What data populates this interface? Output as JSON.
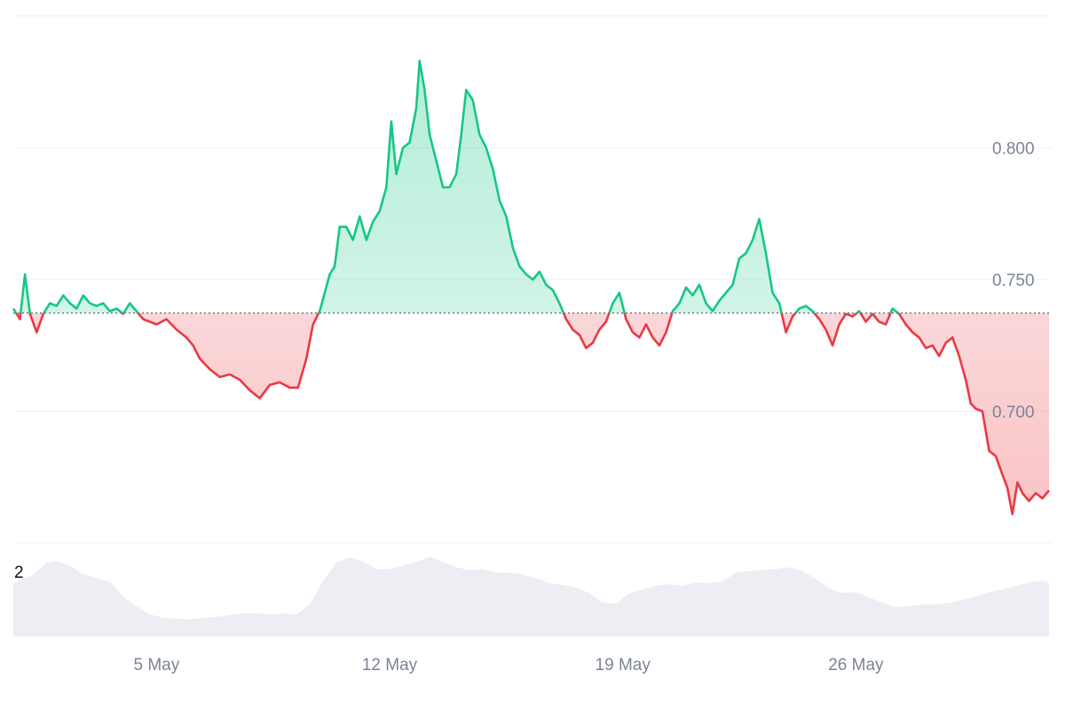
{
  "chart_data": {
    "type": "area",
    "baseline": 0.7373,
    "ylim": [
      0.65,
      0.85
    ],
    "y_ticks": [
      "0.800",
      "0.750",
      "0.700"
    ],
    "y_tick_values": [
      0.8,
      0.75,
      0.7
    ],
    "x_ticks": [
      "5 May",
      "12 May",
      "19 May",
      "26 May"
    ],
    "x_tick_values": [
      5.0,
      12.0,
      19.0,
      26.0
    ],
    "xlim": [
      0.7,
      31.8
    ],
    "volume_label": "2",
    "colors": {
      "above": "#16c784",
      "below": "#ea3943",
      "above_fill": "#16c784",
      "below_fill": "#ea3943",
      "grid": "#eff2f5",
      "volume": "#eceef3",
      "baseline": "#5a6270"
    },
    "series": [
      {
        "values": [
          [
            0.7,
            0.739
          ],
          [
            0.9,
            0.735
          ],
          [
            1.05,
            0.752
          ],
          [
            1.2,
            0.737
          ],
          [
            1.4,
            0.73
          ],
          [
            1.6,
            0.737
          ],
          [
            1.8,
            0.741
          ],
          [
            2.0,
            0.74
          ],
          [
            2.2,
            0.744
          ],
          [
            2.4,
            0.741
          ],
          [
            2.6,
            0.739
          ],
          [
            2.8,
            0.744
          ],
          [
            3.0,
            0.741
          ],
          [
            3.2,
            0.74
          ],
          [
            3.4,
            0.741
          ],
          [
            3.6,
            0.738
          ],
          [
            3.8,
            0.739
          ],
          [
            4.0,
            0.737
          ],
          [
            4.2,
            0.741
          ],
          [
            4.4,
            0.738
          ],
          [
            4.6,
            0.735
          ],
          [
            4.8,
            0.734
          ],
          [
            5.0,
            0.733
          ],
          [
            5.3,
            0.735
          ],
          [
            5.6,
            0.731
          ],
          [
            5.9,
            0.728
          ],
          [
            6.1,
            0.725
          ],
          [
            6.3,
            0.72
          ],
          [
            6.6,
            0.716
          ],
          [
            6.9,
            0.713
          ],
          [
            7.2,
            0.714
          ],
          [
            7.5,
            0.712
          ],
          [
            7.8,
            0.708
          ],
          [
            8.1,
            0.705
          ],
          [
            8.4,
            0.71
          ],
          [
            8.7,
            0.711
          ],
          [
            9.0,
            0.709
          ],
          [
            9.25,
            0.709
          ],
          [
            9.5,
            0.72
          ],
          [
            9.7,
            0.733
          ],
          [
            9.9,
            0.738
          ],
          [
            10.05,
            0.745
          ],
          [
            10.2,
            0.752
          ],
          [
            10.35,
            0.755
          ],
          [
            10.5,
            0.77
          ],
          [
            10.7,
            0.77
          ],
          [
            10.9,
            0.765
          ],
          [
            11.1,
            0.774
          ],
          [
            11.3,
            0.765
          ],
          [
            11.5,
            0.772
          ],
          [
            11.7,
            0.776
          ],
          [
            11.9,
            0.785
          ],
          [
            12.05,
            0.81
          ],
          [
            12.2,
            0.79
          ],
          [
            12.4,
            0.8
          ],
          [
            12.6,
            0.802
          ],
          [
            12.8,
            0.815
          ],
          [
            12.9,
            0.833
          ],
          [
            13.05,
            0.822
          ],
          [
            13.2,
            0.805
          ],
          [
            13.4,
            0.795
          ],
          [
            13.6,
            0.785
          ],
          [
            13.8,
            0.785
          ],
          [
            14.0,
            0.79
          ],
          [
            14.15,
            0.805
          ],
          [
            14.3,
            0.822
          ],
          [
            14.5,
            0.818
          ],
          [
            14.7,
            0.805
          ],
          [
            14.9,
            0.8
          ],
          [
            15.1,
            0.792
          ],
          [
            15.3,
            0.78
          ],
          [
            15.5,
            0.774
          ],
          [
            15.7,
            0.762
          ],
          [
            15.9,
            0.755
          ],
          [
            16.1,
            0.752
          ],
          [
            16.3,
            0.75
          ],
          [
            16.5,
            0.753
          ],
          [
            16.7,
            0.748
          ],
          [
            16.9,
            0.746
          ],
          [
            17.1,
            0.741
          ],
          [
            17.3,
            0.735
          ],
          [
            17.5,
            0.731
          ],
          [
            17.7,
            0.729
          ],
          [
            17.9,
            0.724
          ],
          [
            18.1,
            0.726
          ],
          [
            18.3,
            0.731
          ],
          [
            18.5,
            0.734
          ],
          [
            18.7,
            0.741
          ],
          [
            18.9,
            0.745
          ],
          [
            19.1,
            0.735
          ],
          [
            19.3,
            0.73
          ],
          [
            19.5,
            0.728
          ],
          [
            19.7,
            0.733
          ],
          [
            19.9,
            0.728
          ],
          [
            20.1,
            0.725
          ],
          [
            20.3,
            0.73
          ],
          [
            20.5,
            0.738
          ],
          [
            20.7,
            0.741
          ],
          [
            20.9,
            0.747
          ],
          [
            21.1,
            0.744
          ],
          [
            21.3,
            0.748
          ],
          [
            21.5,
            0.741
          ],
          [
            21.7,
            0.738
          ],
          [
            21.9,
            0.742
          ],
          [
            22.1,
            0.745
          ],
          [
            22.3,
            0.748
          ],
          [
            22.5,
            0.758
          ],
          [
            22.7,
            0.76
          ],
          [
            22.9,
            0.765
          ],
          [
            23.1,
            0.773
          ],
          [
            23.3,
            0.76
          ],
          [
            23.5,
            0.745
          ],
          [
            23.7,
            0.741
          ],
          [
            23.9,
            0.73
          ],
          [
            24.1,
            0.736
          ],
          [
            24.3,
            0.739
          ],
          [
            24.5,
            0.74
          ],
          [
            24.7,
            0.738
          ],
          [
            24.9,
            0.735
          ],
          [
            25.1,
            0.731
          ],
          [
            25.3,
            0.725
          ],
          [
            25.5,
            0.733
          ],
          [
            25.7,
            0.737
          ],
          [
            25.9,
            0.736
          ],
          [
            26.1,
            0.738
          ],
          [
            26.3,
            0.734
          ],
          [
            26.5,
            0.737
          ],
          [
            26.7,
            0.734
          ],
          [
            26.9,
            0.733
          ],
          [
            27.1,
            0.739
          ],
          [
            27.3,
            0.737
          ],
          [
            27.5,
            0.733
          ],
          [
            27.7,
            0.73
          ],
          [
            27.9,
            0.728
          ],
          [
            28.1,
            0.724
          ],
          [
            28.3,
            0.725
          ],
          [
            28.5,
            0.721
          ],
          [
            28.7,
            0.726
          ],
          [
            28.9,
            0.728
          ],
          [
            29.1,
            0.721
          ],
          [
            29.3,
            0.712
          ],
          [
            29.45,
            0.703
          ],
          [
            29.6,
            0.701
          ],
          [
            29.8,
            0.7
          ],
          [
            30.0,
            0.685
          ],
          [
            30.2,
            0.683
          ],
          [
            30.4,
            0.676
          ],
          [
            30.55,
            0.671
          ],
          [
            30.7,
            0.661
          ],
          [
            30.85,
            0.673
          ],
          [
            31.0,
            0.669
          ],
          [
            31.2,
            0.666
          ],
          [
            31.4,
            0.669
          ],
          [
            31.6,
            0.667
          ],
          [
            31.8,
            0.67
          ]
        ]
      }
    ],
    "volume": [
      [
        0.7,
        0.6
      ],
      [
        1.3,
        0.7
      ],
      [
        1.7,
        0.83
      ],
      [
        2.0,
        0.85
      ],
      [
        2.4,
        0.8
      ],
      [
        2.8,
        0.7
      ],
      [
        3.2,
        0.66
      ],
      [
        3.6,
        0.62
      ],
      [
        4.0,
        0.45
      ],
      [
        4.4,
        0.34
      ],
      [
        4.8,
        0.25
      ],
      [
        5.2,
        0.21
      ],
      [
        5.6,
        0.2
      ],
      [
        6.0,
        0.19
      ],
      [
        6.4,
        0.21
      ],
      [
        6.8,
        0.22
      ],
      [
        7.2,
        0.24
      ],
      [
        7.6,
        0.26
      ],
      [
        8.0,
        0.26
      ],
      [
        8.4,
        0.25
      ],
      [
        8.8,
        0.26
      ],
      [
        9.2,
        0.25
      ],
      [
        9.6,
        0.36
      ],
      [
        10.0,
        0.63
      ],
      [
        10.4,
        0.83
      ],
      [
        10.8,
        0.89
      ],
      [
        11.2,
        0.85
      ],
      [
        11.6,
        0.76
      ],
      [
        12.0,
        0.76
      ],
      [
        12.4,
        0.8
      ],
      [
        12.8,
        0.84
      ],
      [
        13.2,
        0.9
      ],
      [
        13.6,
        0.84
      ],
      [
        14.0,
        0.78
      ],
      [
        14.4,
        0.75
      ],
      [
        14.8,
        0.76
      ],
      [
        15.2,
        0.72
      ],
      [
        15.6,
        0.72
      ],
      [
        16.0,
        0.7
      ],
      [
        16.4,
        0.66
      ],
      [
        16.8,
        0.6
      ],
      [
        17.2,
        0.58
      ],
      [
        17.6,
        0.55
      ],
      [
        18.0,
        0.49
      ],
      [
        18.4,
        0.38
      ],
      [
        18.8,
        0.37
      ],
      [
        19.2,
        0.49
      ],
      [
        19.6,
        0.53
      ],
      [
        20.0,
        0.57
      ],
      [
        20.4,
        0.59
      ],
      [
        20.8,
        0.57
      ],
      [
        21.2,
        0.61
      ],
      [
        21.6,
        0.6
      ],
      [
        22.0,
        0.62
      ],
      [
        22.4,
        0.72
      ],
      [
        22.8,
        0.74
      ],
      [
        23.2,
        0.75
      ],
      [
        23.6,
        0.76
      ],
      [
        24.0,
        0.78
      ],
      [
        24.4,
        0.74
      ],
      [
        24.8,
        0.65
      ],
      [
        25.2,
        0.54
      ],
      [
        25.6,
        0.49
      ],
      [
        26.0,
        0.5
      ],
      [
        26.4,
        0.44
      ],
      [
        26.8,
        0.38
      ],
      [
        27.2,
        0.33
      ],
      [
        27.6,
        0.34
      ],
      [
        28.0,
        0.36
      ],
      [
        28.4,
        0.36
      ],
      [
        28.8,
        0.38
      ],
      [
        29.2,
        0.41
      ],
      [
        29.6,
        0.45
      ],
      [
        30.0,
        0.5
      ],
      [
        30.4,
        0.53
      ],
      [
        30.8,
        0.57
      ],
      [
        31.2,
        0.61
      ],
      [
        31.6,
        0.63
      ],
      [
        31.8,
        0.61
      ]
    ]
  }
}
